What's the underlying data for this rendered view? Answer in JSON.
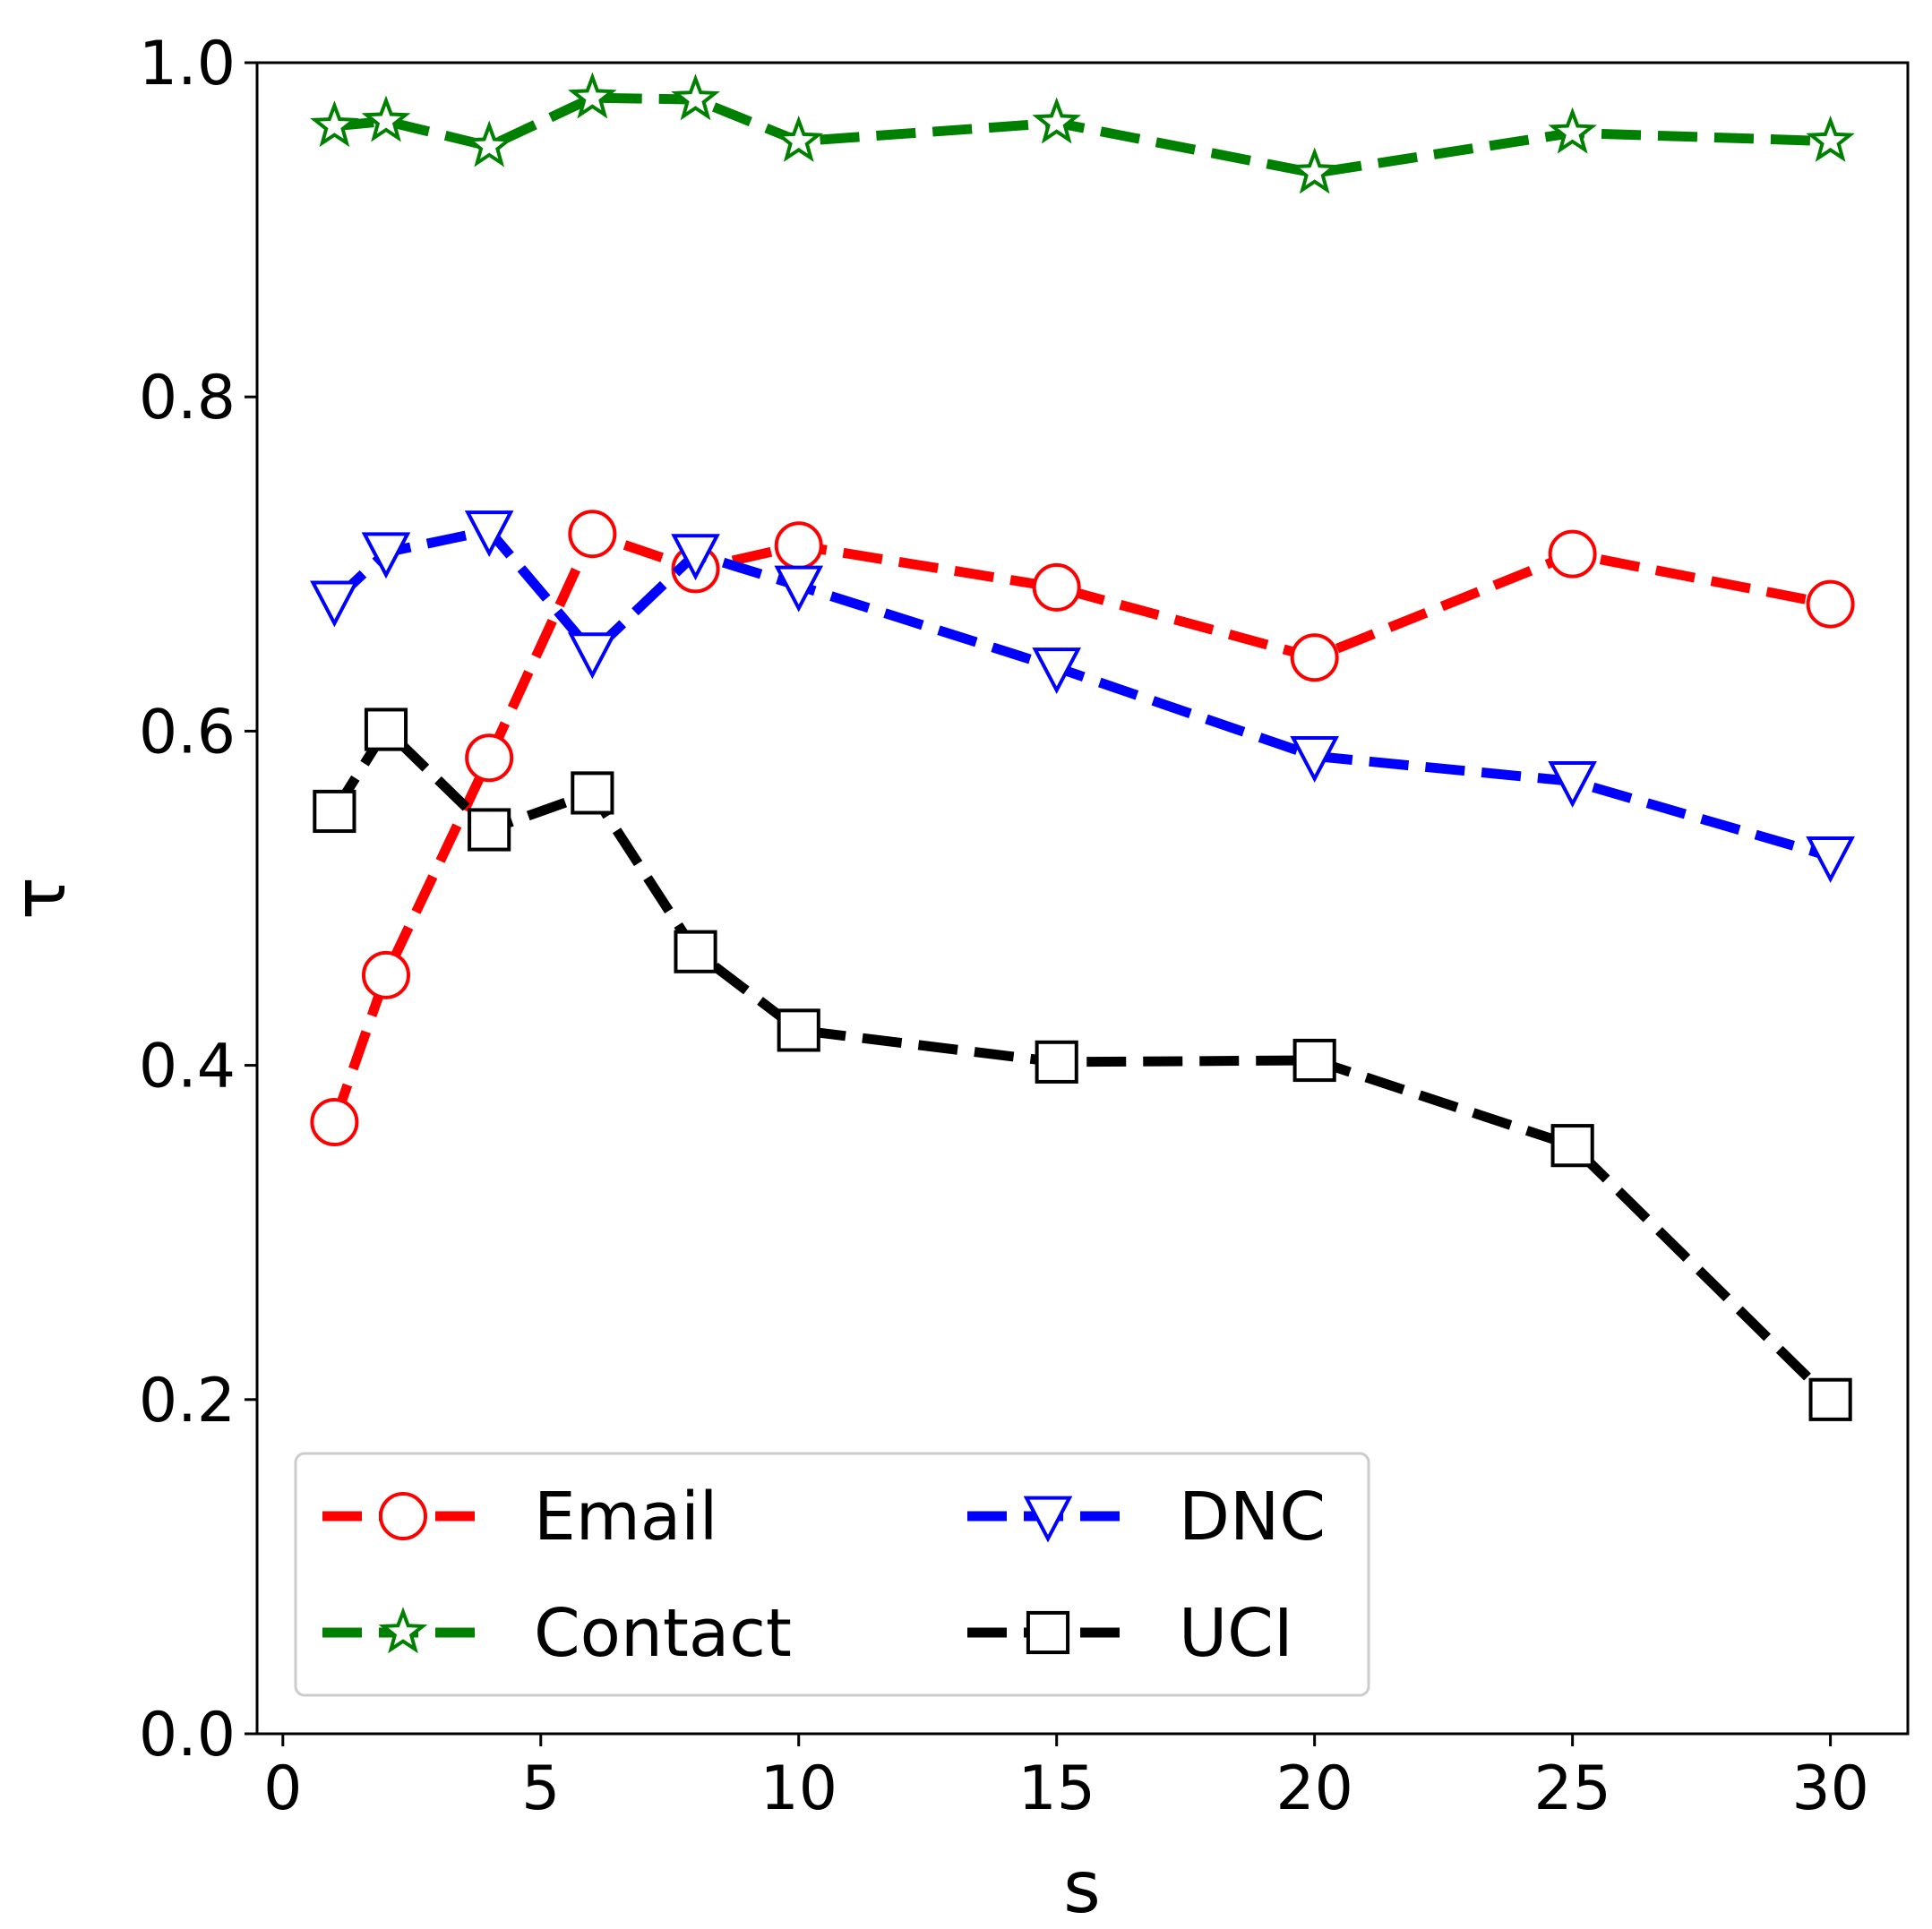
{
  "chart_data": {
    "type": "line",
    "title": "",
    "xlabel": "s",
    "ylabel": "τ",
    "xlim": [
      -0.5,
      31.5
    ],
    "ylim": [
      0.0,
      1.0
    ],
    "xticks": [
      0,
      5,
      10,
      15,
      20,
      25,
      30
    ],
    "yticks": [
      0.0,
      0.2,
      0.4,
      0.6,
      0.8,
      1.0
    ],
    "xtick_labels": [
      "0",
      "5",
      "10",
      "15",
      "20",
      "25",
      "30"
    ],
    "ytick_labels": [
      "0.0",
      "0.2",
      "0.4",
      "0.6",
      "0.8",
      "1.0"
    ],
    "grid": false,
    "legend": {
      "placement": "lower-left",
      "columns": 2,
      "order": [
        "Email",
        "Contact",
        "DNC",
        "UCI"
      ]
    },
    "series": [
      {
        "name": "Email",
        "color": "#ff0000",
        "marker": "circle",
        "x": [
          1,
          2,
          4,
          6,
          8,
          10,
          15,
          20,
          25,
          30
        ],
        "y": [
          0.366,
          0.454,
          0.584,
          0.718,
          0.697,
          0.711,
          0.686,
          0.644,
          0.706,
          0.676
        ]
      },
      {
        "name": "Contact",
        "color": "#008000",
        "marker": "star",
        "x": [
          1,
          2,
          4,
          6,
          8,
          10,
          15,
          20,
          25,
          30
        ],
        "y": [
          0.962,
          0.965,
          0.95,
          0.979,
          0.978,
          0.953,
          0.964,
          0.934,
          0.958,
          0.953
        ]
      },
      {
        "name": "DNC",
        "color": "#0000ff",
        "marker": "triangle-down",
        "x": [
          1,
          2,
          4,
          6,
          8,
          10,
          15,
          20,
          25,
          30
        ],
        "y": [
          0.678,
          0.707,
          0.72,
          0.647,
          0.706,
          0.687,
          0.638,
          0.585,
          0.57,
          0.525
        ]
      },
      {
        "name": "UCI",
        "color": "#000000",
        "marker": "square",
        "x": [
          1,
          2,
          4,
          6,
          8,
          10,
          15,
          20,
          25,
          30
        ],
        "y": [
          0.552,
          0.601,
          0.541,
          0.563,
          0.468,
          0.421,
          0.402,
          0.403,
          0.352,
          0.2
        ]
      }
    ]
  }
}
